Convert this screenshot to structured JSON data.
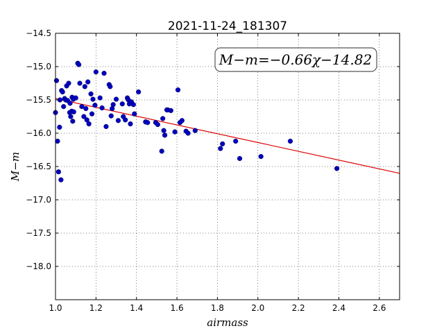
{
  "chart_data": {
    "type": "scatter",
    "title": "2021-11-24_181307",
    "xlabel": "airmass",
    "ylabel": "M−m",
    "xlim": [
      1.0,
      2.7
    ],
    "ylim": [
      -18.5,
      -14.5
    ],
    "y_inverted": true,
    "grid": true,
    "x_ticks": [
      1.0,
      1.2,
      1.4,
      1.6,
      1.8,
      2.0,
      2.2,
      2.4,
      2.6
    ],
    "x_tick_labels": [
      "1.0",
      "1.2",
      "1.4",
      "1.6",
      "1.8",
      "2.0",
      "2.2",
      "2.4",
      "2.6"
    ],
    "y_ticks": [
      -14.5,
      -15.0,
      -15.5,
      -16.0,
      -16.5,
      -17.0,
      -17.5,
      -18.0
    ],
    "y_tick_labels": [
      "−14.5",
      "−15.0",
      "−15.5",
      "−16.0",
      "−16.5",
      "−17.0",
      "−17.5",
      "−18.0"
    ],
    "annotation": "M−m=−0.66χ−14.82",
    "fit": {
      "slope": -0.66,
      "intercept": -14.82,
      "x_range": [
        1.0,
        2.7
      ],
      "color": "#dd0000"
    },
    "marker_color": "#0000c0",
    "points": [
      [
        1.0,
        -15.69
      ],
      [
        1.005,
        -15.21
      ],
      [
        1.01,
        -16.12
      ],
      [
        1.015,
        -16.58
      ],
      [
        1.02,
        -15.91
      ],
      [
        1.022,
        -15.5
      ],
      [
        1.027,
        -16.7
      ],
      [
        1.03,
        -15.36
      ],
      [
        1.035,
        -15.38
      ],
      [
        1.04,
        -15.6
      ],
      [
        1.045,
        -15.48
      ],
      [
        1.05,
        -15.5
      ],
      [
        1.055,
        -15.29
      ],
      [
        1.06,
        -15.51
      ],
      [
        1.065,
        -15.25
      ],
      [
        1.07,
        -15.69
      ],
      [
        1.072,
        -15.55
      ],
      [
        1.075,
        -15.75
      ],
      [
        1.08,
        -15.67
      ],
      [
        1.082,
        -15.46
      ],
      [
        1.085,
        -15.82
      ],
      [
        1.088,
        -15.49
      ],
      [
        1.09,
        -15.68
      ],
      [
        1.1,
        -15.47
      ],
      [
        1.11,
        -14.95
      ],
      [
        1.115,
        -14.97
      ],
      [
        1.12,
        -15.25
      ],
      [
        1.13,
        -15.6
      ],
      [
        1.14,
        -15.75
      ],
      [
        1.145,
        -15.3
      ],
      [
        1.15,
        -15.63
      ],
      [
        1.155,
        -15.8
      ],
      [
        1.16,
        -15.23
      ],
      [
        1.165,
        -15.86
      ],
      [
        1.175,
        -15.41
      ],
      [
        1.18,
        -15.71
      ],
      [
        1.185,
        -15.49
      ],
      [
        1.195,
        -15.58
      ],
      [
        1.2,
        -15.08
      ],
      [
        1.22,
        -15.47
      ],
      [
        1.23,
        -15.62
      ],
      [
        1.24,
        -15.1
      ],
      [
        1.25,
        -15.9
      ],
      [
        1.265,
        -15.27
      ],
      [
        1.27,
        -15.3
      ],
      [
        1.275,
        -15.74
      ],
      [
        1.28,
        -15.63
      ],
      [
        1.285,
        -15.57
      ],
      [
        1.3,
        -15.49
      ],
      [
        1.31,
        -15.81
      ],
      [
        1.33,
        -15.56
      ],
      [
        1.335,
        -15.75
      ],
      [
        1.345,
        -15.8
      ],
      [
        1.355,
        -15.47
      ],
      [
        1.36,
        -15.5
      ],
      [
        1.365,
        -15.56
      ],
      [
        1.37,
        -15.86
      ],
      [
        1.375,
        -15.53
      ],
      [
        1.385,
        -15.57
      ],
      [
        1.39,
        -15.71
      ],
      [
        1.41,
        -15.38
      ],
      [
        1.445,
        -15.83
      ],
      [
        1.455,
        -15.84
      ],
      [
        1.495,
        -15.84
      ],
      [
        1.505,
        -15.87
      ],
      [
        1.525,
        -16.27
      ],
      [
        1.53,
        -15.78
      ],
      [
        1.535,
        -15.96
      ],
      [
        1.54,
        -16.03
      ],
      [
        1.55,
        -15.65
      ],
      [
        1.555,
        -15.65
      ],
      [
        1.57,
        -15.66
      ],
      [
        1.59,
        -15.98
      ],
      [
        1.605,
        -15.35
      ],
      [
        1.615,
        -15.84
      ],
      [
        1.625,
        -15.81
      ],
      [
        1.645,
        -15.97
      ],
      [
        1.655,
        -16.0
      ],
      [
        1.69,
        -15.96
      ],
      [
        1.815,
        -16.23
      ],
      [
        1.825,
        -16.16
      ],
      [
        1.89,
        -16.12
      ],
      [
        1.91,
        -16.38
      ],
      [
        2.015,
        -16.35
      ],
      [
        2.16,
        -16.12
      ],
      [
        2.39,
        -16.53
      ]
    ]
  }
}
